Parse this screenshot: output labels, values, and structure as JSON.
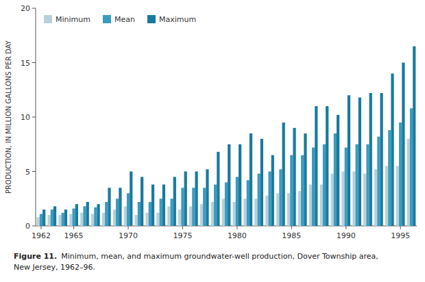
{
  "chart_data": {
    "type": "bar",
    "title": "Figure 11.",
    "subtitle": "Minimum, mean, and maximum groundwater-well production, Dover Township area,\nNew Jersey, 1962–96.",
    "y_label": "PRODUCTION, IN MILLION GALLONS PER DAY",
    "categories": [
      "1962",
      null,
      null,
      "1965",
      null,
      null,
      null,
      null,
      "1970",
      null,
      null,
      null,
      null,
      "1975",
      null,
      null,
      null,
      null,
      "1980",
      null,
      null,
      null,
      null,
      "1985",
      null,
      null,
      null,
      null,
      "1990",
      null,
      null,
      null,
      null,
      "1995",
      null
    ],
    "series": [
      {
        "name": "Minimum",
        "color": "#b8d0db",
        "values": [
          0.8,
          1.0,
          1.0,
          1.1,
          1.2,
          1.1,
          1.2,
          1.5,
          1.8,
          1.0,
          1.2,
          1.2,
          1.8,
          1.5,
          1.8,
          2.0,
          2.2,
          2.5,
          2.2,
          2.5,
          2.5,
          2.8,
          3.0,
          3.0,
          3.2,
          3.8,
          3.8,
          4.8,
          5.0,
          5.0,
          4.8,
          5.2,
          5.5,
          5.5,
          8.0
        ]
      },
      {
        "name": "Mean",
        "color": "#3a9bbf",
        "values": [
          1.1,
          1.5,
          1.2,
          1.6,
          1.8,
          1.7,
          2.2,
          2.5,
          3.0,
          2.2,
          2.2,
          2.5,
          2.5,
          3.5,
          3.5,
          3.5,
          3.8,
          4.0,
          4.5,
          4.2,
          4.8,
          5.0,
          5.2,
          6.5,
          6.5,
          7.2,
          7.5,
          8.5,
          7.2,
          7.5,
          7.5,
          8.2,
          8.8,
          9.5,
          10.8
        ]
      },
      {
        "name": "Maximum",
        "color": "#1a7a9e",
        "values": [
          1.5,
          1.8,
          1.5,
          2.0,
          2.2,
          2.0,
          3.5,
          3.5,
          5.0,
          4.5,
          3.8,
          3.8,
          4.5,
          5.0,
          5.0,
          5.2,
          6.8,
          7.5,
          7.5,
          8.5,
          8.0,
          6.5,
          9.5,
          9.0,
          8.5,
          11.0,
          11.0,
          10.2,
          12.0,
          11.8,
          12.2,
          12.2,
          14.0,
          15.0,
          16.5
        ]
      }
    ],
    "ylim": [
      0,
      20
    ],
    "yticks": [
      0,
      5,
      10,
      15,
      20
    ],
    "grid": false,
    "legend": "upper left"
  }
}
